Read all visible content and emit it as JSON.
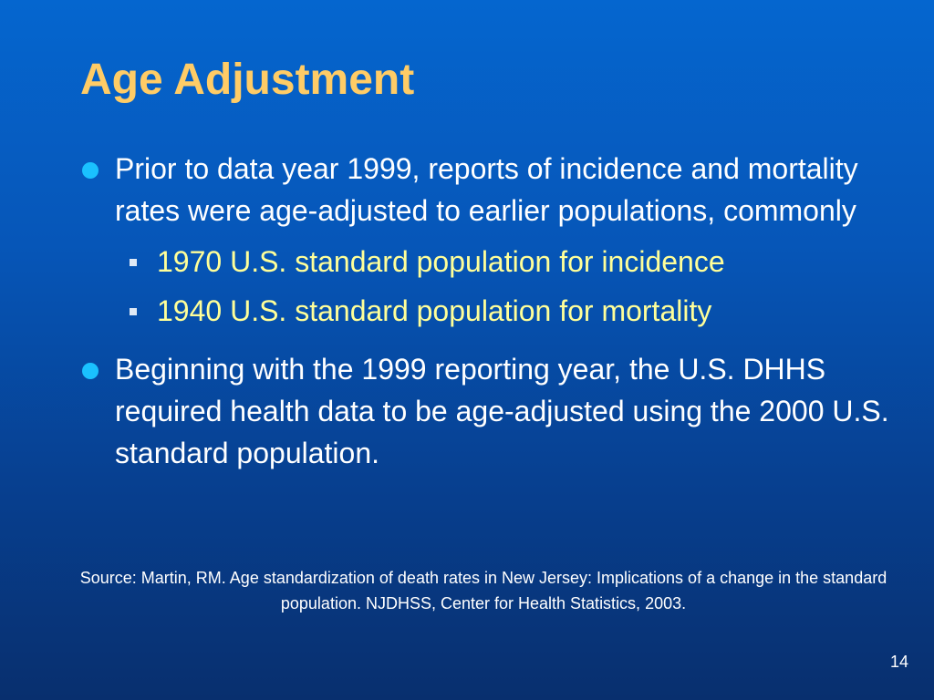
{
  "slide": {
    "title": "Age Adjustment",
    "bullets": [
      {
        "text": "Prior to data year 1999, reports of incidence and mortality rates were age-adjusted to earlier populations, commonly",
        "subitems": [
          "1970 U.S. standard population for incidence",
          "1940 U.S. standard population for mortality"
        ]
      },
      {
        "text": "Beginning with the 1999 reporting year, the U.S. DHHS required health data to be age-adjusted using the 2000 U.S. standard population."
      }
    ],
    "source": "Source: Martin, RM. Age standardization of death rates in New Jersey: Implications of a change in the standard population. NJDHSS, Center for Health Statistics, 2003.",
    "page_number": "14"
  },
  "colors": {
    "title": "#ffcc66",
    "body_text": "#ffffff",
    "sub_text": "#ffff99",
    "bullet_dot": "#1ac1ff",
    "background_top": "#0566cf",
    "background_bottom": "#082f6e"
  }
}
